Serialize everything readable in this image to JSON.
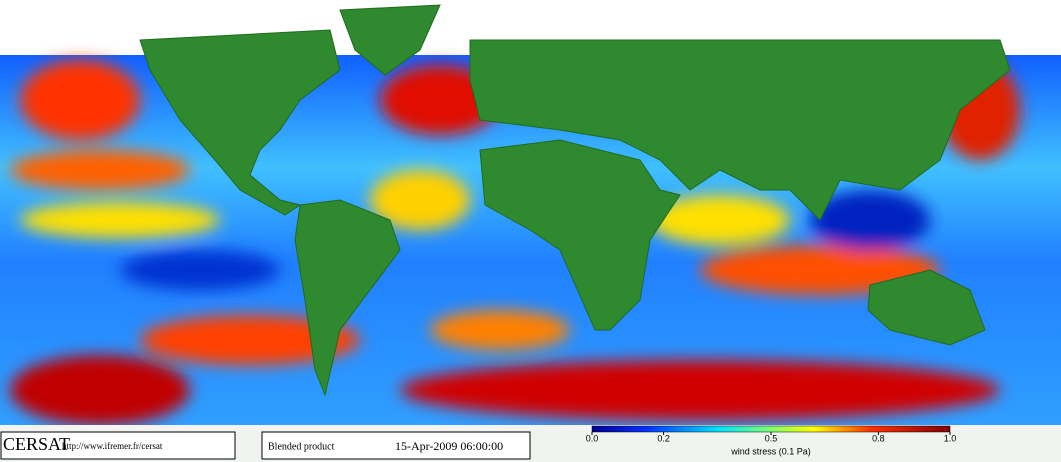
{
  "footer": {
    "logo": "CERSAT",
    "url": "http://www.ifremer.fr/cersat",
    "product": "Blended product",
    "datetime": "15-Apr-2009 06:00:00"
  },
  "colorbar": {
    "label": "wind stress (0.1 Pa)",
    "lim": [
      0,
      1
    ],
    "ticks": [
      {
        "value": 0,
        "label": "0.0"
      },
      0.2,
      0.5,
      0.8,
      {
        "value": 1,
        "label": "1.0"
      }
    ]
  }
}
